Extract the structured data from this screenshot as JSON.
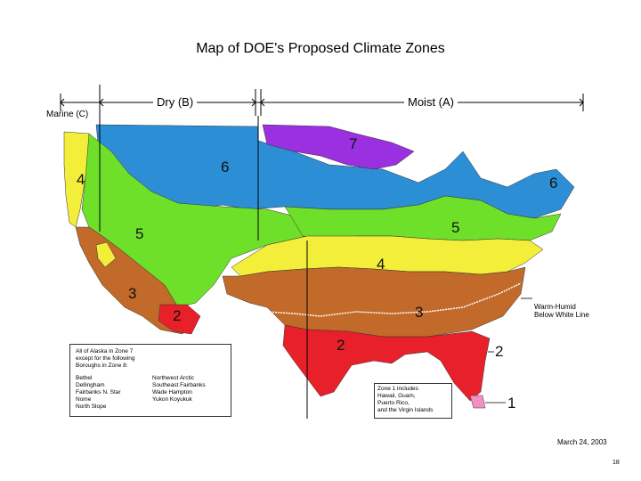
{
  "title": "Map of DOE's Proposed Climate Zones",
  "headers": {
    "dry": "Dry (B)",
    "moist": "Moist (A)",
    "marine": "Marine (C)"
  },
  "zone_labels": {
    "z7": "7",
    "z6_west": "6",
    "z6_east": "6",
    "z5_west": "5",
    "z5_east": "5",
    "z4_west": "4",
    "z4_central": "4",
    "z3_west": "3",
    "z3_central": "3",
    "z2_west": "2",
    "z2_central": "2",
    "z2_callout": "2",
    "z1_callout": "1"
  },
  "legend_note": {
    "warm_humid": "Warm-Humid\nBelow White Line"
  },
  "alaska_note": {
    "intro": "All of Alaska in Zone 7\nexcept for the following\nBoroughs in Zone 8:",
    "col1": "Bethel\nDellingham\nFairbanks N. Star\nNome\nNorth Slope",
    "col2": "Northwest Arctic\nSoutheast Fairbanks\nWade Hampton\nYukon Koyukuk"
  },
  "zone1_note": "Zone 1 includes\nHawaii, Guam,\nPuerto Rico,\nand the Virgin Islands",
  "date": "March 24, 2003",
  "page_number": "18",
  "colors": {
    "zone1": "#f48fc0",
    "zone2": "#e8202a",
    "zone3": "#c26a2a",
    "zone4": "#f2ee3a",
    "zone5": "#6fe02a",
    "zone6": "#2c8fd6",
    "zone7": "#9a30e0"
  }
}
